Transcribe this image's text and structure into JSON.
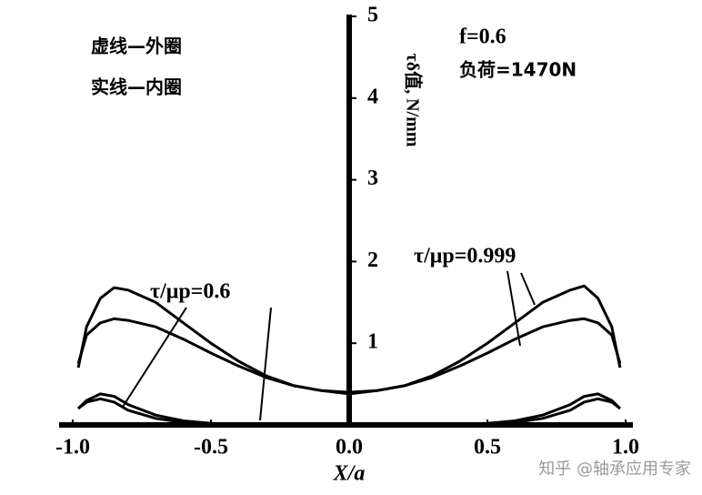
{
  "chart_data": {
    "type": "line",
    "x_label": "X/a",
    "y_label": "τδ值, N/mm",
    "annotations": [
      "虚线—外圈",
      "实线—内圈",
      "f=0.6",
      "负荷=1470N",
      "τ/μp=0.6",
      "τ/μp=0.999"
    ],
    "x": [
      -0.98,
      -0.95,
      -0.9,
      -0.85,
      -0.8,
      -0.7,
      -0.6,
      -0.5,
      -0.4,
      -0.3,
      -0.2,
      -0.1,
      0,
      0.1,
      0.2,
      0.3,
      0.4,
      0.5,
      0.6,
      0.7,
      0.8,
      0.85,
      0.9,
      0.95,
      0.98
    ],
    "series": [
      {
        "color": "#000000",
        "values": [
          0.7,
          1.2,
          1.55,
          1.68,
          1.65,
          1.5,
          1.25,
          1.0,
          0.78,
          0.6,
          0.48,
          0.42,
          0.4,
          0.42,
          0.48,
          0.6,
          0.78,
          1.0,
          1.25,
          1.5,
          1.65,
          1.7,
          1.55,
          1.2,
          0.7
        ]
      },
      {
        "color": "#000000",
        "values": [
          0.75,
          1.1,
          1.25,
          1.3,
          1.28,
          1.2,
          1.05,
          0.88,
          0.72,
          0.58,
          0.48,
          0.42,
          0.38,
          0.42,
          0.48,
          0.58,
          0.72,
          0.88,
          1.05,
          1.2,
          1.28,
          1.3,
          1.25,
          1.1,
          0.75
        ]
      },
      {
        "color": "#000000",
        "values": [
          0.2,
          0.3,
          0.38,
          0.35,
          0.25,
          0.12,
          0.05,
          0.02,
          0.01,
          0,
          0,
          0,
          0,
          0,
          0,
          0,
          0.01,
          0.02,
          0.05,
          0.12,
          0.25,
          0.35,
          0.38,
          0.3,
          0.2
        ]
      },
      {
        "color": "#000000",
        "values": [
          0.2,
          0.28,
          0.32,
          0.28,
          0.18,
          0.08,
          0.03,
          0.01,
          0,
          0,
          0,
          0,
          0,
          0,
          0,
          0,
          0,
          0.01,
          0.03,
          0.08,
          0.18,
          0.28,
          0.32,
          0.28,
          0.2
        ]
      }
    ],
    "xlim": [
      -1.0,
      1.0
    ],
    "ylim": [
      0,
      5
    ],
    "xticks": [
      {
        "value": -1.0,
        "label": "-1.0"
      },
      {
        "value": -0.5,
        "label": "-0.5"
      },
      {
        "value": 0,
        "label": "0.0"
      },
      {
        "value": 0.5,
        "label": "0.5"
      },
      {
        "value": 1.0,
        "label": "1.0"
      }
    ],
    "yticks": [
      1,
      2,
      3,
      4,
      5
    ]
  },
  "watermark": "知乎 @轴承应用专家"
}
